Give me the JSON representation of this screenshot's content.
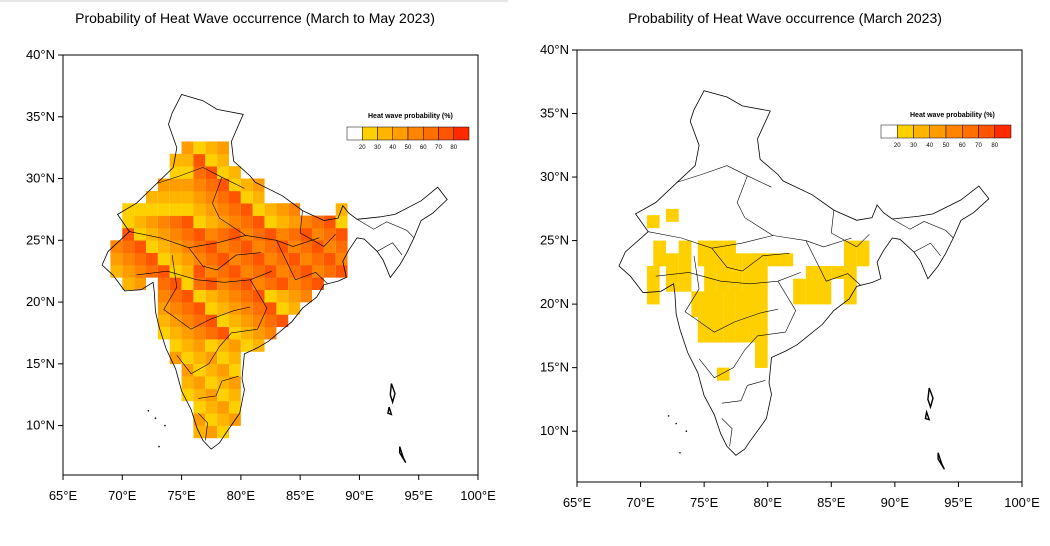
{
  "maps": [
    {
      "title": "Probability of Heat Wave occurrence (March to May 2023)",
      "legend_title": "Heat wave probability (%)",
      "legend_ticks": [
        "20",
        "30",
        "40",
        "50",
        "60",
        "70",
        "80"
      ],
      "y_ticks": [
        "40°N",
        "35°N",
        "30°N",
        "25°N",
        "20°N",
        "15°N",
        "10°N"
      ],
      "x_ticks": [
        "65°E",
        "70°E",
        "75°E",
        "80°E",
        "85°E",
        "90°E",
        "95°E",
        "100°E"
      ],
      "lon_range": [
        65,
        100
      ],
      "lat_range": [
        6,
        40
      ]
    },
    {
      "title": "Probability of Heat Wave occurrence (March 2023)",
      "legend_title": "Heat wave probability (%)",
      "legend_ticks": [
        "20",
        "30",
        "40",
        "50",
        "60",
        "70",
        "80"
      ],
      "y_ticks": [
        "40°N",
        "35°N",
        "30°N",
        "25°N",
        "20°N",
        "15°N",
        "10°N"
      ],
      "x_ticks": [
        "65°E",
        "70°E",
        "75°E",
        "80°E",
        "85°E",
        "90°E",
        "95°E",
        "100°E"
      ],
      "lon_range": [
        65,
        100
      ],
      "lat_range": [
        6,
        40
      ]
    }
  ],
  "legend_colors": [
    "#ffffff",
    "#ffd000",
    "#ffb400",
    "#ff9c00",
    "#ff8400",
    "#ff6e00",
    "#ff5400",
    "#ff2a00"
  ],
  "colors": {
    "land_outline": "#000000",
    "background": "#ffffff"
  }
}
